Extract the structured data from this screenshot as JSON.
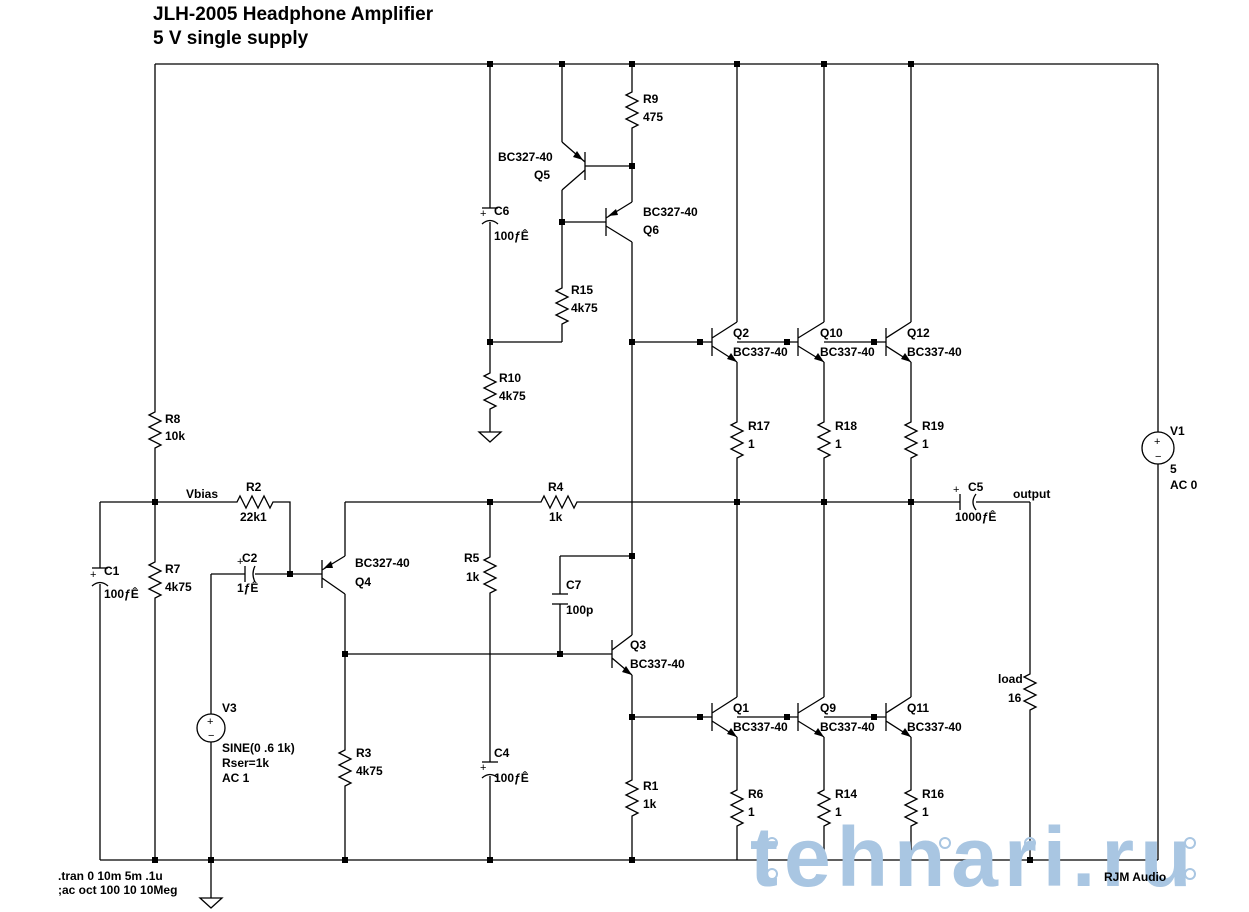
{
  "header": {
    "title": "JLH-2005 Headphone Amplifier",
    "subtitle": "5 V single supply"
  },
  "nodes": {
    "vbias": "Vbias",
    "output": "output"
  },
  "components": {
    "R8": {
      "ref": "R8",
      "value": "10k"
    },
    "R7": {
      "ref": "R7",
      "value": "4k75"
    },
    "R2": {
      "ref": "R2",
      "value": "22k1"
    },
    "C1": {
      "ref": "C1",
      "value": "100ƒÊ"
    },
    "C2": {
      "ref": "C2",
      "value": "1ƒÊ"
    },
    "Q4": {
      "ref": "Q4",
      "part": "BC327-40"
    },
    "R3": {
      "ref": "R3",
      "value": "4k75"
    },
    "V3": {
      "ref": "V3",
      "line1": "SINE(0 .6 1k)",
      "line2": "Rser=1k",
      "line3": "AC 1"
    },
    "C6": {
      "ref": "C6",
      "value": "100ƒÊ"
    },
    "R10": {
      "ref": "R10",
      "value": "4k75"
    },
    "R15": {
      "ref": "R15",
      "value": "4k75"
    },
    "Q5": {
      "ref": "Q5",
      "part": "BC327-40"
    },
    "Q6": {
      "ref": "Q6",
      "part": "BC327-40"
    },
    "R9": {
      "ref": "R9",
      "value": "475"
    },
    "R5": {
      "ref": "R5",
      "value": "1k"
    },
    "R4": {
      "ref": "R4",
      "value": "1k"
    },
    "C4": {
      "ref": "C4",
      "value": "100ƒÊ"
    },
    "C7": {
      "ref": "C7",
      "value": "100p"
    },
    "Q3": {
      "ref": "Q3",
      "part": "BC337-40"
    },
    "R1": {
      "ref": "R1",
      "value": "1k"
    },
    "Q2": {
      "ref": "Q2",
      "part": "BC337-40"
    },
    "Q10": {
      "ref": "Q10",
      "part": "BC337-40"
    },
    "Q12": {
      "ref": "Q12",
      "part": "BC337-40"
    },
    "Q1": {
      "ref": "Q1",
      "part": "BC337-40"
    },
    "Q9": {
      "ref": "Q9",
      "part": "BC337-40"
    },
    "Q11": {
      "ref": "Q11",
      "part": "BC337-40"
    },
    "R17": {
      "ref": "R17",
      "value": "1"
    },
    "R18": {
      "ref": "R18",
      "value": "1"
    },
    "R19": {
      "ref": "R19",
      "value": "1"
    },
    "R6": {
      "ref": "R6",
      "value": "1"
    },
    "R14": {
      "ref": "R14",
      "value": "1"
    },
    "R16": {
      "ref": "R16",
      "value": "1"
    },
    "C5": {
      "ref": "C5",
      "value": "1000ƒÊ"
    },
    "load": {
      "ref": "load",
      "value": "16"
    },
    "V1": {
      "ref": "V1",
      "value": "5",
      "ac": "AC 0"
    }
  },
  "directives": {
    "tran": ".tran 0 10m 5m .1u",
    "ac": ";ac oct 100 10 10Meg"
  },
  "credit": "RJM Audio",
  "watermark": "tehnari.ru"
}
